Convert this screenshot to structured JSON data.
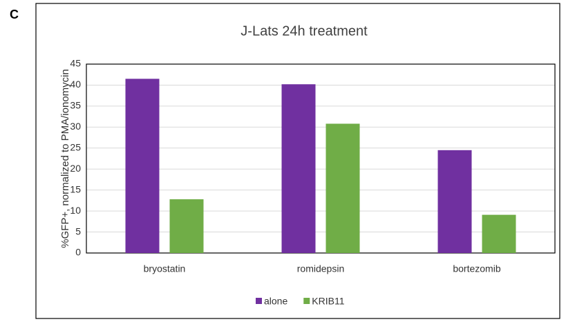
{
  "panel_label": "C",
  "chart_data": {
    "type": "bar",
    "title": "J-Lats 24h treatment",
    "y_label": "%GFP+, normalized to PMA/ionomycin",
    "categories": [
      "bryostatin",
      "romidepsin",
      "bortezomib"
    ],
    "series": [
      {
        "name": "alone",
        "color": "#7030a0",
        "values": [
          41.5,
          40.2,
          24.5
        ]
      },
      {
        "name": "KRIB11",
        "color": "#70ad47",
        "values": [
          12.8,
          30.8,
          9.1
        ]
      }
    ],
    "ylim": [
      0,
      45
    ],
    "yticks": [
      0,
      5,
      10,
      15,
      20,
      25,
      30,
      35,
      40,
      45
    ],
    "grid": true,
    "legend": "bottom"
  }
}
